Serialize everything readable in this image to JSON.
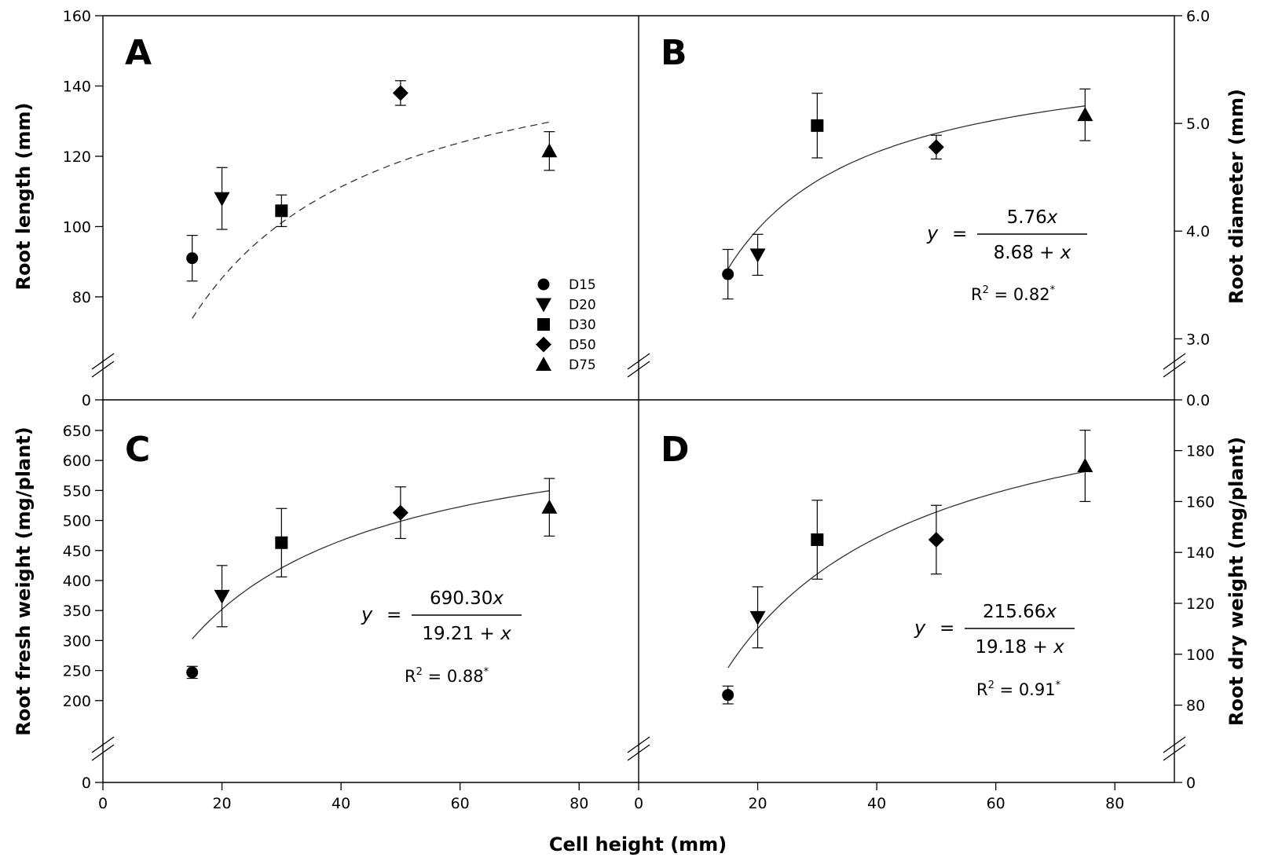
{
  "x_axis_title": "Cell height (mm)",
  "chart_data": [
    {
      "panel": "A",
      "type": "scatter",
      "ylabel": "Root length (mm)",
      "xlim": [
        0,
        90
      ],
      "ylim": [
        65,
        160
      ],
      "x_ticks": [
        0,
        20,
        40,
        60,
        80
      ],
      "y_ticks": [
        80,
        100,
        120,
        140,
        160
      ],
      "y_break_label": "0",
      "y_axis_side": "left",
      "series": [
        {
          "name": "D15",
          "marker": "circle",
          "x": 15,
          "y": 91,
          "err": 6.5
        },
        {
          "name": "D20",
          "marker": "triangle-down",
          "x": 20,
          "y": 108,
          "err": 8.8
        },
        {
          "name": "D30",
          "marker": "square",
          "x": 30,
          "y": 104.5,
          "err": 4.5
        },
        {
          "name": "D50",
          "marker": "diamond",
          "x": 50,
          "y": 138,
          "err": 3.5
        },
        {
          "name": "D75",
          "marker": "triangle-up",
          "x": 75,
          "y": 121.5,
          "err": 5.5
        }
      ],
      "fit": {
        "a": 160,
        "b": 17.5,
        "x_range": [
          15,
          75
        ],
        "style": "dashed"
      },
      "legend": {
        "placement": "bottom-right",
        "entries": [
          "D15",
          "D20",
          "D30",
          "D50",
          "D75"
        ]
      }
    },
    {
      "panel": "B",
      "type": "scatter",
      "ylabel": "Root diameter (mm)",
      "xlim": [
        0,
        90
      ],
      "ylim": [
        2.9,
        6.0
      ],
      "x_ticks": [],
      "y_ticks": [
        3.0,
        4.0,
        5.0,
        6.0
      ],
      "y_tick_labels": [
        "3.0",
        "4.0",
        "5.0",
        "6.0"
      ],
      "y_break_label": "0.0",
      "y_axis_side": "right",
      "series": [
        {
          "name": "D15",
          "marker": "circle",
          "x": 15,
          "y": 3.6,
          "err": 0.23
        },
        {
          "name": "D20",
          "marker": "triangle-down",
          "x": 20,
          "y": 3.78,
          "err": 0.19
        },
        {
          "name": "D30",
          "marker": "square",
          "x": 30,
          "y": 4.98,
          "err": 0.3
        },
        {
          "name": "D50",
          "marker": "diamond",
          "x": 50,
          "y": 4.78,
          "err": 0.11
        },
        {
          "name": "D75",
          "marker": "triangle-up",
          "x": 75,
          "y": 5.08,
          "err": 0.24
        }
      ],
      "fit": {
        "a": 5.76,
        "b": 8.68,
        "x_range": [
          15,
          75
        ],
        "style": "solid"
      },
      "equation": {
        "y": "y",
        "eq": "=",
        "numerator": "5.76",
        "var": "x",
        "denominator": "8.68 + ",
        "r2_prefix": "R",
        "r2_sup": "2",
        "r2_value": " = 0.82",
        "r2_star": "*"
      }
    },
    {
      "panel": "C",
      "type": "scatter",
      "ylabel": "Root fresh weight (mg/plant)",
      "xlim": [
        0,
        90
      ],
      "ylim": [
        150,
        680
      ],
      "x_ticks": [
        0,
        20,
        40,
        60,
        80
      ],
      "y_ticks": [
        200,
        250,
        300,
        350,
        400,
        450,
        500,
        550,
        600,
        650
      ],
      "y_break_label": "0",
      "y_axis_side": "left",
      "series": [
        {
          "name": "D15",
          "marker": "circle",
          "x": 15,
          "y": 247,
          "err": 10
        },
        {
          "name": "D20",
          "marker": "triangle-down",
          "x": 20,
          "y": 374,
          "err": 51
        },
        {
          "name": "D30",
          "marker": "square",
          "x": 30,
          "y": 463,
          "err": 57
        },
        {
          "name": "D50",
          "marker": "diamond",
          "x": 50,
          "y": 513,
          "err": 43
        },
        {
          "name": "D75",
          "marker": "triangle-up",
          "x": 75,
          "y": 522,
          "err": 48
        }
      ],
      "fit": {
        "a": 690.3,
        "b": 19.21,
        "x_range": [
          15,
          75
        ],
        "style": "solid"
      },
      "equation": {
        "y": "y",
        "eq": "=",
        "numerator": "690.30",
        "var": "x",
        "denominator": "19.21 + ",
        "r2_prefix": "R",
        "r2_sup": "2",
        "r2_value": " = 0.88",
        "r2_star": "*"
      }
    },
    {
      "panel": "D",
      "type": "scatter",
      "ylabel": "Root dry weight (mg/plant)",
      "xlim": [
        0,
        90
      ],
      "ylim": [
        70,
        195
      ],
      "x_ticks": [
        0,
        20,
        40,
        60,
        80
      ],
      "y_ticks": [
        80,
        100,
        120,
        140,
        160,
        180
      ],
      "y_break_label": "0",
      "y_axis_side": "right",
      "series": [
        {
          "name": "D15",
          "marker": "circle",
          "x": 15,
          "y": 84,
          "err": 3.5
        },
        {
          "name": "D20",
          "marker": "triangle-down",
          "x": 20,
          "y": 114.5,
          "err": 12
        },
        {
          "name": "D30",
          "marker": "square",
          "x": 30,
          "y": 145,
          "err": 15.5
        },
        {
          "name": "D50",
          "marker": "diamond",
          "x": 50,
          "y": 145,
          "err": 13.5
        },
        {
          "name": "D75",
          "marker": "triangle-up",
          "x": 75,
          "y": 174,
          "err": 14
        }
      ],
      "fit": {
        "a": 215.66,
        "b": 19.18,
        "x_range": [
          15,
          75
        ],
        "style": "solid"
      },
      "equation": {
        "y": "y",
        "eq": "=",
        "numerator": "215.66",
        "var": "x",
        "denominator": "19.18 + ",
        "r2_prefix": "R",
        "r2_sup": "2",
        "r2_value": " = 0.91",
        "r2_star": "*"
      }
    }
  ]
}
